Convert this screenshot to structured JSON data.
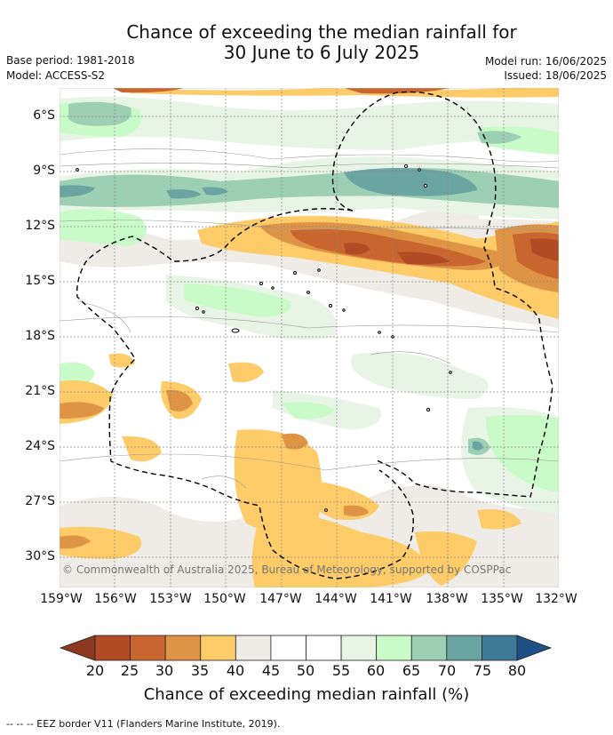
{
  "title": {
    "line1": "Chance of exceeding the median rainfall for",
    "line2": "30 June to 6 July 2025"
  },
  "meta": {
    "base_period": "Base period: 1981-2018",
    "model": "Model: ACCESS-S2",
    "model_run": "Model run: 16/06/2025",
    "issued": "Issued: 18/06/2025"
  },
  "map": {
    "lat_labels": [
      "6°S",
      "9°S",
      "12°S",
      "15°S",
      "18°S",
      "21°S",
      "24°S",
      "27°S",
      "30°S"
    ],
    "lon_labels": [
      "159°W",
      "156°W",
      "153°W",
      "150°W",
      "147°W",
      "144°W",
      "141°W",
      "138°W",
      "135°W",
      "132°W"
    ],
    "copyright": "© Commonwealth of Australia 2025, Bureau of Meteorology, supported by COSPPac"
  },
  "colorbar": {
    "ticks": [
      "20",
      "25",
      "30",
      "35",
      "40",
      "45",
      "50",
      "55",
      "60",
      "65",
      "70",
      "75",
      "80"
    ],
    "colors": [
      "#8b3a1f",
      "#b24a25",
      "#c9652f",
      "#df9345",
      "#fdcb67",
      "#efebe6",
      "#ffffff",
      "#ffffff",
      "#e8f5e6",
      "#c8fbc8",
      "#9ccfb4",
      "#6aa5a2",
      "#3e7a97",
      "#1e4f86"
    ],
    "label": "Chance of exceeding median rainfall (%)"
  },
  "footnote": "--  --  -- EEZ border V11 (Flanders Marine Institute, 2019)."
}
